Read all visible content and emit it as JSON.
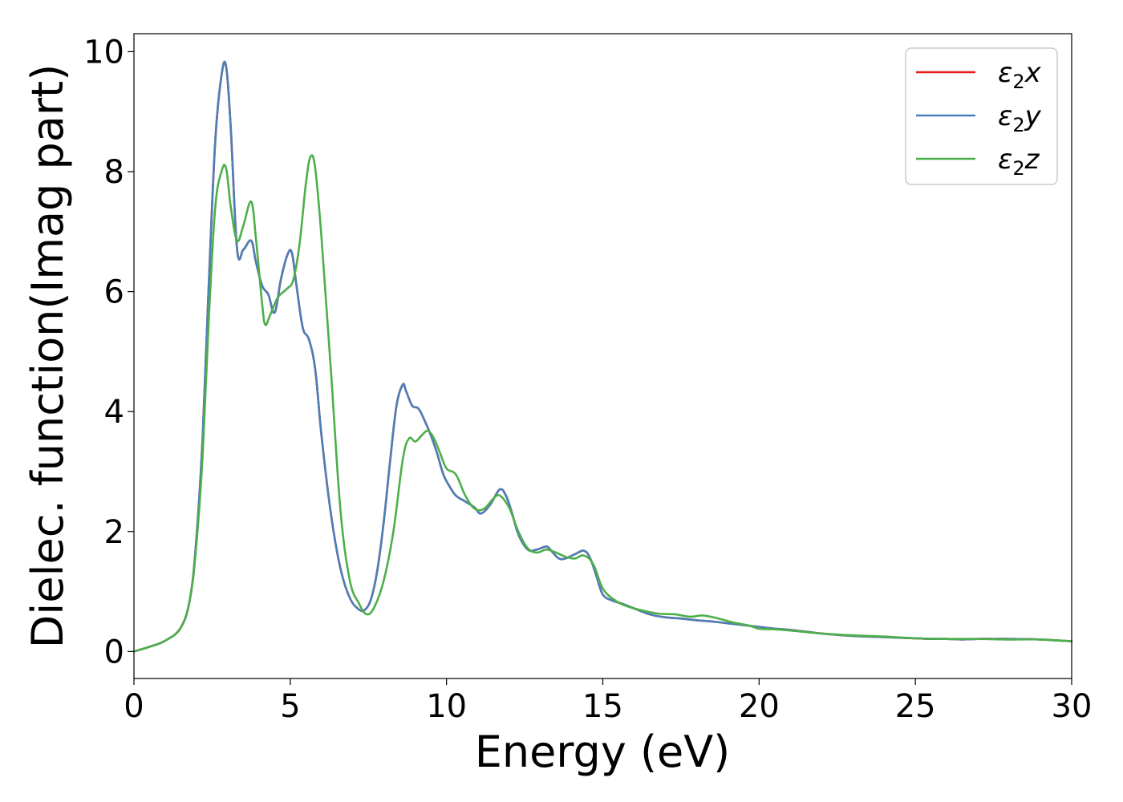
{
  "chart_data": {
    "type": "line",
    "xlabel": "Energy (eV)",
    "ylabel": "Dielec. function(Imag part)",
    "xlim": [
      0,
      30
    ],
    "ylim": [
      -0.45,
      10.3
    ],
    "xticks": [
      0,
      5,
      10,
      15,
      20,
      25,
      30
    ],
    "yticks": [
      0,
      2,
      4,
      6,
      8,
      10
    ],
    "grid": false,
    "legend_position": "top-right",
    "series": [
      {
        "name": "ε2x",
        "label_main": "ε",
        "label_sub": "2",
        "label_tail": "x",
        "color": "#e41a1c",
        "x": [
          0,
          0.5,
          1,
          1.5,
          1.8,
          2.0,
          2.2,
          2.4,
          2.6,
          2.8,
          2.95,
          3.1,
          3.3,
          3.5,
          3.75,
          3.9,
          4.1,
          4.3,
          4.5,
          4.7,
          4.9,
          5.05,
          5.2,
          5.4,
          5.6,
          5.8,
          6.0,
          6.3,
          6.6,
          6.9,
          7.2,
          7.4,
          7.6,
          7.8,
          8.0,
          8.2,
          8.4,
          8.6,
          8.7,
          8.9,
          9.1,
          9.3,
          9.5,
          9.7,
          9.9,
          10.1,
          10.3,
          10.6,
          10.9,
          11.1,
          11.4,
          11.7,
          11.9,
          12.1,
          12.3,
          12.6,
          12.9,
          13.2,
          13.4,
          13.6,
          13.8,
          14.1,
          14.4,
          14.6,
          14.8,
          15.0,
          15.3,
          15.6,
          16.0,
          16.5,
          17.0,
          17.5,
          18.0,
          18.5,
          19.0,
          19.5,
          20.0,
          20.5,
          21.0,
          22.0,
          23.0,
          24.0,
          25.0,
          25.5,
          26.0,
          26.5,
          27.0,
          27.5,
          28.0,
          29.0,
          30.0
        ],
        "y": [
          0,
          0.08,
          0.18,
          0.4,
          0.9,
          1.9,
          3.6,
          6.2,
          8.5,
          9.6,
          9.75,
          8.7,
          6.7,
          6.7,
          6.85,
          6.5,
          6.1,
          5.95,
          5.65,
          6.2,
          6.6,
          6.65,
          6.1,
          5.4,
          5.2,
          4.7,
          3.6,
          2.3,
          1.4,
          0.9,
          0.7,
          0.7,
          0.9,
          1.4,
          2.2,
          3.2,
          4.1,
          4.45,
          4.35,
          4.1,
          4.05,
          3.85,
          3.6,
          3.3,
          2.95,
          2.75,
          2.6,
          2.5,
          2.4,
          2.3,
          2.45,
          2.7,
          2.6,
          2.3,
          1.95,
          1.7,
          1.7,
          1.75,
          1.65,
          1.55,
          1.55,
          1.62,
          1.68,
          1.55,
          1.25,
          0.95,
          0.85,
          0.8,
          0.72,
          0.62,
          0.57,
          0.55,
          0.52,
          0.5,
          0.47,
          0.44,
          0.41,
          0.38,
          0.36,
          0.3,
          0.26,
          0.24,
          0.22,
          0.21,
          0.21,
          0.2,
          0.21,
          0.21,
          0.21,
          0.2,
          0.17
        ]
      },
      {
        "name": "ε2y",
        "label_main": "ε",
        "label_sub": "2",
        "label_tail": "y",
        "color": "#4c7fb8",
        "x": [
          0,
          0.5,
          1,
          1.5,
          1.8,
          2.0,
          2.2,
          2.4,
          2.6,
          2.8,
          2.95,
          3.1,
          3.3,
          3.5,
          3.75,
          3.9,
          4.1,
          4.3,
          4.5,
          4.7,
          4.9,
          5.05,
          5.2,
          5.4,
          5.6,
          5.8,
          6.0,
          6.3,
          6.6,
          6.9,
          7.2,
          7.4,
          7.6,
          7.8,
          8.0,
          8.2,
          8.4,
          8.6,
          8.7,
          8.9,
          9.1,
          9.3,
          9.5,
          9.7,
          9.9,
          10.1,
          10.3,
          10.6,
          10.9,
          11.1,
          11.4,
          11.7,
          11.9,
          12.1,
          12.3,
          12.6,
          12.9,
          13.2,
          13.4,
          13.6,
          13.8,
          14.1,
          14.4,
          14.6,
          14.8,
          15.0,
          15.3,
          15.6,
          16.0,
          16.5,
          17.0,
          17.5,
          18.0,
          18.5,
          19.0,
          19.5,
          20.0,
          20.5,
          21.0,
          22.0,
          23.0,
          24.0,
          25.0,
          25.5,
          26.0,
          26.5,
          27.0,
          27.5,
          28.0,
          29.0,
          30.0
        ],
        "y": [
          0,
          0.08,
          0.18,
          0.4,
          0.9,
          1.9,
          3.6,
          6.2,
          8.5,
          9.6,
          9.75,
          8.7,
          6.7,
          6.7,
          6.85,
          6.5,
          6.1,
          5.95,
          5.65,
          6.2,
          6.6,
          6.65,
          6.1,
          5.4,
          5.2,
          4.7,
          3.6,
          2.3,
          1.4,
          0.9,
          0.7,
          0.7,
          0.9,
          1.4,
          2.2,
          3.2,
          4.1,
          4.45,
          4.35,
          4.1,
          4.05,
          3.85,
          3.6,
          3.3,
          2.95,
          2.75,
          2.6,
          2.5,
          2.4,
          2.3,
          2.45,
          2.7,
          2.6,
          2.3,
          1.95,
          1.7,
          1.7,
          1.75,
          1.65,
          1.55,
          1.55,
          1.62,
          1.68,
          1.55,
          1.25,
          0.95,
          0.85,
          0.8,
          0.72,
          0.62,
          0.57,
          0.55,
          0.52,
          0.5,
          0.47,
          0.44,
          0.41,
          0.38,
          0.36,
          0.3,
          0.26,
          0.24,
          0.22,
          0.21,
          0.21,
          0.2,
          0.21,
          0.21,
          0.21,
          0.2,
          0.17
        ]
      },
      {
        "name": "ε2z",
        "label_main": "ε",
        "label_sub": "2",
        "label_tail": "z",
        "color": "#4daf4a",
        "x": [
          0,
          0.5,
          1,
          1.5,
          1.8,
          2.0,
          2.2,
          2.4,
          2.6,
          2.8,
          2.95,
          3.1,
          3.3,
          3.5,
          3.75,
          3.9,
          4.1,
          4.2,
          4.35,
          4.6,
          4.9,
          5.1,
          5.3,
          5.5,
          5.65,
          5.8,
          6.0,
          6.3,
          6.6,
          6.9,
          7.2,
          7.45,
          7.7,
          8.0,
          8.3,
          8.6,
          8.8,
          9.0,
          9.2,
          9.4,
          9.6,
          9.8,
          10.0,
          10.3,
          10.6,
          10.9,
          11.2,
          11.5,
          11.7,
          12.0,
          12.3,
          12.6,
          12.9,
          13.2,
          13.5,
          13.8,
          14.1,
          14.4,
          14.7,
          15.0,
          15.4,
          15.8,
          16.3,
          16.8,
          17.3,
          17.8,
          18.2,
          18.7,
          19.2,
          19.7,
          20.0,
          20.5,
          21.0,
          22.0,
          23.0,
          24.0,
          25.0,
          26.0,
          27.0,
          28.0,
          29.0,
          30.0
        ],
        "y": [
          0,
          0.08,
          0.18,
          0.4,
          0.9,
          1.8,
          3.3,
          5.6,
          7.4,
          8.0,
          8.05,
          7.4,
          6.85,
          7.1,
          7.5,
          6.9,
          5.8,
          5.45,
          5.6,
          5.9,
          6.05,
          6.2,
          6.8,
          7.8,
          8.25,
          8.05,
          6.9,
          4.7,
          2.4,
          1.2,
          0.8,
          0.62,
          0.75,
          1.2,
          2.0,
          3.2,
          3.55,
          3.5,
          3.6,
          3.68,
          3.55,
          3.3,
          3.05,
          2.95,
          2.6,
          2.38,
          2.38,
          2.55,
          2.6,
          2.4,
          2.0,
          1.72,
          1.65,
          1.7,
          1.65,
          1.58,
          1.55,
          1.6,
          1.45,
          1.05,
          0.85,
          0.75,
          0.68,
          0.63,
          0.62,
          0.58,
          0.6,
          0.55,
          0.48,
          0.43,
          0.38,
          0.37,
          0.35,
          0.3,
          0.27,
          0.25,
          0.22,
          0.21,
          0.21,
          0.2,
          0.2,
          0.17
        ]
      }
    ]
  }
}
